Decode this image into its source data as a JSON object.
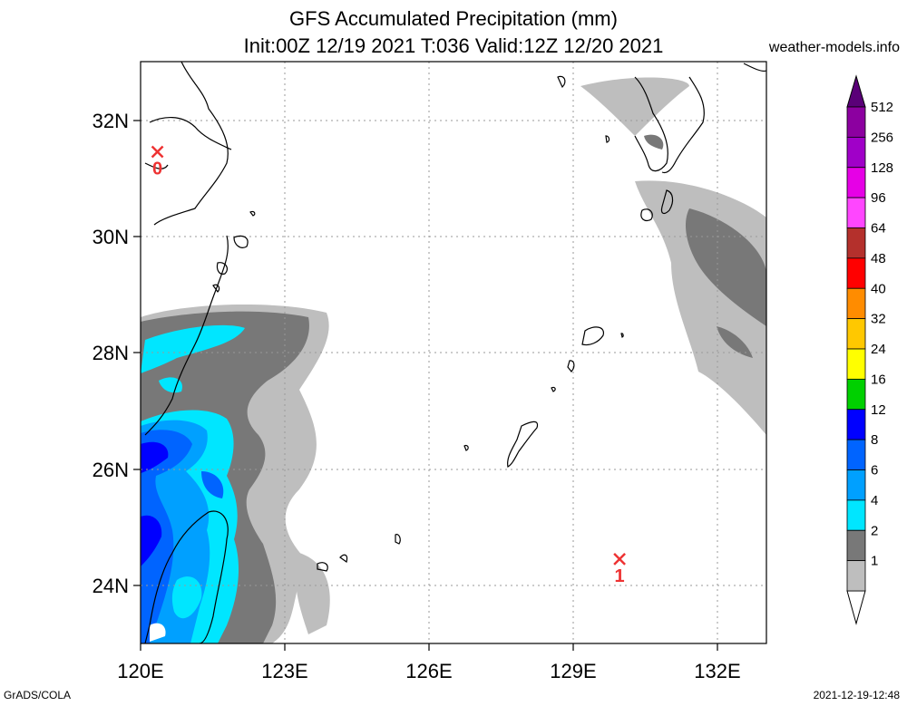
{
  "header": {
    "title_line1": "GFS Accumulated Precipitation (mm)",
    "title_line2": "Init:00Z 12/19 2021 T:036 Valid:12Z 12/20 2021",
    "site": "weather-models.info"
  },
  "map": {
    "lon_ticks": [
      "120E",
      "123E",
      "126E",
      "129E",
      "132E"
    ],
    "lat_ticks": [
      "32N",
      "30N",
      "28N",
      "26N",
      "24N"
    ],
    "lon_range": [
      120,
      133
    ],
    "lat_range": [
      23,
      33
    ],
    "markers": [
      {
        "label": "0",
        "lon": 120.35,
        "lat": 31.45
      },
      {
        "label": "1",
        "lon": 129.95,
        "lat": 24.45
      }
    ]
  },
  "colorbar": {
    "labels": [
      "512",
      "256",
      "128",
      "96",
      "64",
      "48",
      "40",
      "32",
      "24",
      "16",
      "12",
      "8",
      "6",
      "4",
      "2",
      "1"
    ],
    "colors": [
      "#8c00a0",
      "#a000c8",
      "#e600e6",
      "#ff46ff",
      "#b4302c",
      "#ff0000",
      "#ff8c00",
      "#ffc800",
      "#ffff00",
      "#00d000",
      "#0000ff",
      "#0064ff",
      "#00a0ff",
      "#00e6ff",
      "#787878",
      "#bebebe"
    ]
  },
  "footer": {
    "credit": "GrADS/COLA",
    "timestamp": "2021-12-19-12:48"
  }
}
